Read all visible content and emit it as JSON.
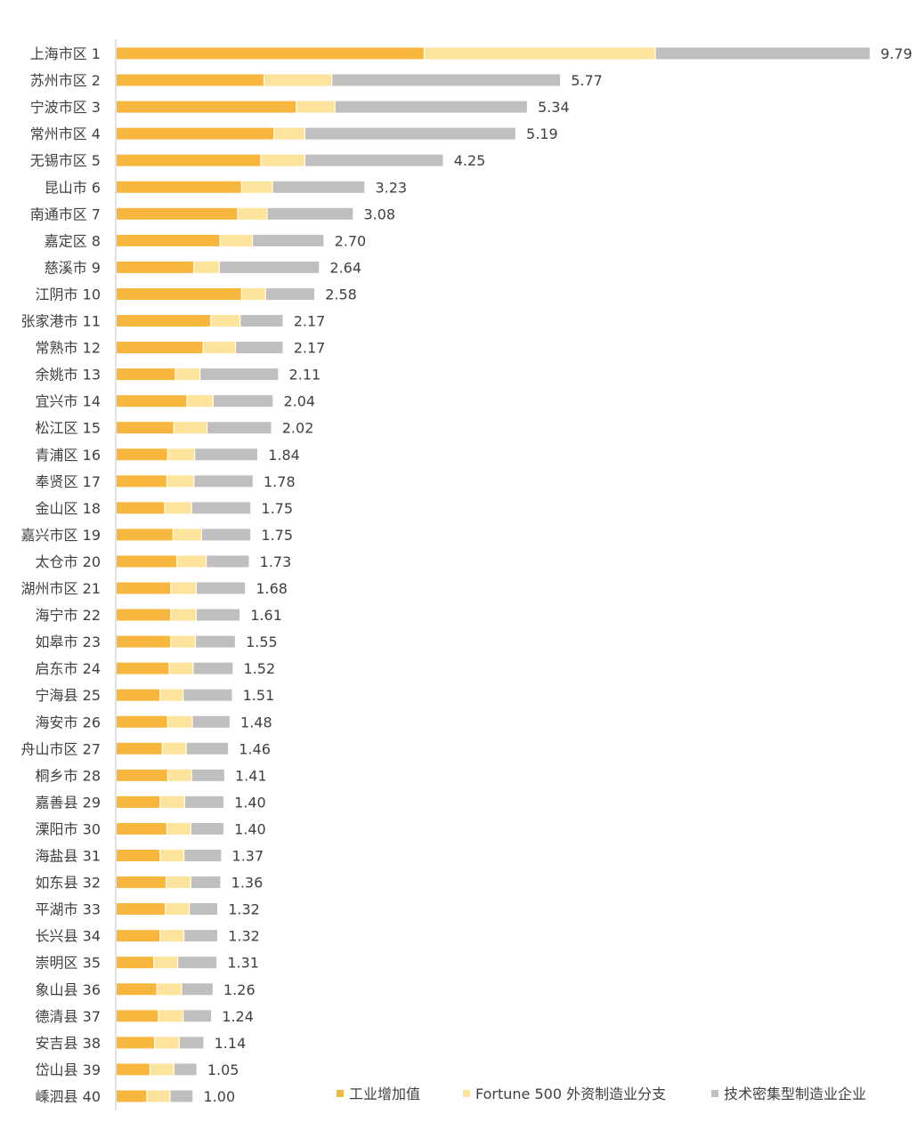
{
  "chart_data": {
    "type": "bar",
    "orientation": "horizontal",
    "stacked": true,
    "categories": [
      "上海市区 1",
      "苏州市区 2",
      "宁波市区 3",
      "常州市区 4",
      "无锡市区 5",
      "昆山市 6",
      "南通市区 7",
      "嘉定区 8",
      "慈溪市 9",
      "江阴市 10",
      "张家港市 11",
      "常熟市 12",
      "余姚市 13",
      "宜兴市 14",
      "松江区 15",
      "青浦区 16",
      "奉贤区 17",
      "金山区 18",
      "嘉兴市区 19",
      "太仓市 20",
      "湖州市区 21",
      "海宁市 22",
      "如皋市 23",
      "启东市 24",
      "宁海县 25",
      "海安市 26",
      "舟山市区 27",
      "桐乡市 28",
      "嘉善县 29",
      "溧阳市 30",
      "海盐县 31",
      "如东县 32",
      "平湖市 33",
      "长兴县 34",
      "崇明区 35",
      "象山县 36",
      "德清县 37",
      "安吉县 38",
      "岱山县 39",
      "嵊泗县 40"
    ],
    "series": [
      {
        "name": "工业增加值",
        "color": "#F7B73E",
        "values": [
          4.0,
          1.92,
          2.34,
          2.05,
          1.88,
          1.63,
          1.58,
          1.35,
          1.01,
          1.63,
          1.23,
          1.13,
          0.77,
          0.92,
          0.75,
          0.67,
          0.66,
          0.63,
          0.74,
          0.79,
          0.71,
          0.71,
          0.71,
          0.69,
          0.57,
          0.67,
          0.6,
          0.67,
          0.57,
          0.66,
          0.57,
          0.65,
          0.64,
          0.57,
          0.49,
          0.53,
          0.55,
          0.5,
          0.44,
          0.4
        ]
      },
      {
        "name": "Fortune 500 外资制造业分支",
        "color": "#FDE39B",
        "values": [
          3.0,
          0.88,
          0.5,
          0.4,
          0.57,
          0.4,
          0.38,
          0.42,
          0.33,
          0.31,
          0.38,
          0.42,
          0.32,
          0.34,
          0.43,
          0.35,
          0.35,
          0.35,
          0.37,
          0.38,
          0.33,
          0.33,
          0.32,
          0.31,
          0.3,
          0.32,
          0.31,
          0.31,
          0.32,
          0.31,
          0.31,
          0.32,
          0.31,
          0.31,
          0.31,
          0.32,
          0.32,
          0.32,
          0.31,
          0.3
        ]
      },
      {
        "name": "技术密集型制造业企业",
        "color": "#BFBFBF",
        "values": [
          2.79,
          2.97,
          2.5,
          2.74,
          1.8,
          1.2,
          1.12,
          0.93,
          1.3,
          0.64,
          0.56,
          0.62,
          1.02,
          0.78,
          0.84,
          0.82,
          0.77,
          0.77,
          0.64,
          0.56,
          0.64,
          0.57,
          0.52,
          0.52,
          0.64,
          0.49,
          0.55,
          0.43,
          0.51,
          0.43,
          0.49,
          0.39,
          0.37,
          0.44,
          0.51,
          0.41,
          0.37,
          0.32,
          0.3,
          0.3
        ]
      }
    ],
    "totals": [
      "9.79",
      "5.77",
      "5.34",
      "5.19",
      "4.25",
      "3.23",
      "3.08",
      "2.70",
      "2.64",
      "2.58",
      "2.17",
      "2.17",
      "2.11",
      "2.04",
      "2.02",
      "1.84",
      "1.78",
      "1.75",
      "1.75",
      "1.73",
      "1.68",
      "1.61",
      "1.55",
      "1.52",
      "1.51",
      "1.48",
      "1.46",
      "1.41",
      "1.40",
      "1.40",
      "1.37",
      "1.36",
      "1.32",
      "1.32",
      "1.31",
      "1.26",
      "1.24",
      "1.14",
      "1.05",
      "1.00"
    ],
    "xlim": [
      0,
      9.79
    ],
    "grid": false,
    "legend_position": "bottom-right",
    "legend": [
      "工业增加值",
      "Fortune 500 外资制造业分支",
      "技术密集型制造业企业"
    ]
  }
}
